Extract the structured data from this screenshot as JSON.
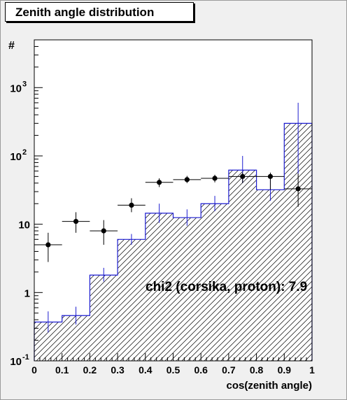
{
  "chart_data": {
    "type": "bar",
    "title": "Zenith angle distribution",
    "xlabel": "cos(zenith angle)",
    "ylabel": "#",
    "xlim": [
      0,
      1
    ],
    "ylim": [
      0.1,
      5000
    ],
    "yscale": "log",
    "x_tick_labels": [
      "0",
      "0.1",
      "0.2",
      "0.3",
      "0.4",
      "0.5",
      "0.6",
      "0.7",
      "0.8",
      "0.9",
      "1"
    ],
    "y_tick_labels": [
      {
        "value": 0.1,
        "base": "10",
        "exp": "-1"
      },
      {
        "value": 1,
        "base": "1",
        "exp": ""
      },
      {
        "value": 10,
        "base": "10",
        "exp": ""
      },
      {
        "value": 100,
        "base": "10",
        "exp": "2"
      },
      {
        "value": 1000,
        "base": "10",
        "exp": "3"
      }
    ],
    "bin_edges": [
      0,
      0.1,
      0.2,
      0.3,
      0.4,
      0.5,
      0.6,
      0.7,
      0.8,
      0.9,
      1.0
    ],
    "histogram": {
      "values": [
        0.37,
        0.46,
        1.8,
        6.0,
        14.5,
        12.5,
        20.0,
        62.0,
        32.0,
        300.0
      ],
      "err_low": [
        0.26,
        0.34,
        1.45,
        5.0,
        10.5,
        9.5,
        15.5,
        40.0,
        22.0,
        55.0
      ],
      "err_high": [
        0.53,
        0.62,
        2.3,
        7.2,
        20.0,
        16.5,
        26.0,
        100.0,
        48.0,
        600.0
      ],
      "color": "#1c1cd0",
      "fill": "hatched"
    },
    "points": {
      "x": [
        0.05,
        0.15,
        0.25,
        0.35,
        0.45,
        0.55,
        0.65,
        0.75,
        0.85,
        0.95
      ],
      "y": [
        5.0,
        11.0,
        8.0,
        19.0,
        41.0,
        45.0,
        47.0,
        50.0,
        50.0,
        33.0
      ],
      "err_low": [
        2.8,
        7.5,
        5.0,
        15.0,
        35.0,
        40.0,
        41.0,
        40.0,
        32.0,
        18.0
      ],
      "err_high": [
        7.5,
        15.0,
        11.5,
        24.0,
        47.0,
        51.0,
        53.0,
        57.0,
        57.0,
        55.0
      ],
      "color": "#000000"
    },
    "annotation": "chi2 (corsika, proton): 7.9"
  }
}
